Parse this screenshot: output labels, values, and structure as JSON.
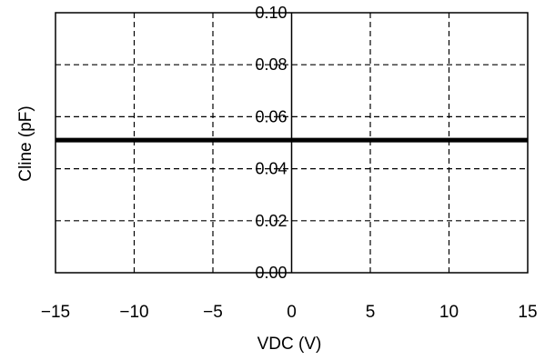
{
  "chart_data": {
    "type": "line",
    "title": "",
    "xlabel": "VDC (V)",
    "ylabel": "Cline (pF)",
    "xlim": [
      -15,
      15
    ],
    "ylim": [
      0,
      0.1
    ],
    "x_ticks": [
      "−15",
      "−10",
      "−5",
      "0",
      "5",
      "10",
      "15"
    ],
    "x_tick_values": [
      -15,
      -10,
      -5,
      0,
      5,
      10,
      15
    ],
    "y_ticks": [
      "0.00",
      "0.02",
      "0.04",
      "0.06",
      "0.08",
      "0.10"
    ],
    "y_tick_values": [
      0,
      0.02,
      0.04,
      0.06,
      0.08,
      0.1
    ],
    "grid": true,
    "series": [
      {
        "x": [
          -15,
          15
        ],
        "y": [
          0.051,
          0.051
        ],
        "color": "#000000"
      }
    ]
  }
}
